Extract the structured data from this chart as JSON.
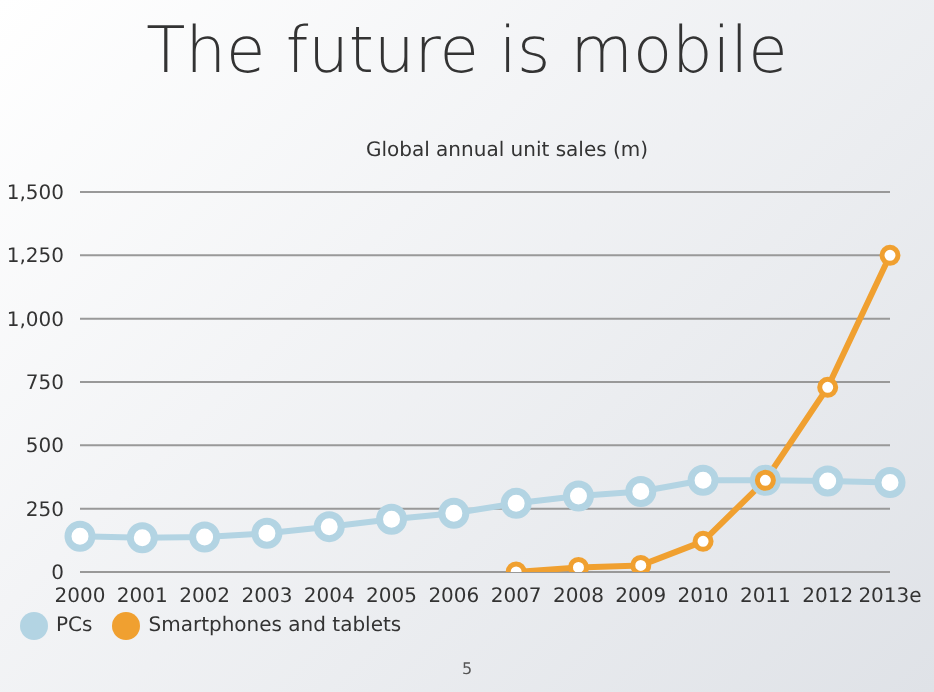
{
  "chart_data": {
    "type": "line",
    "title": "The future is mobile",
    "subtitle": "Global annual unit sales (m)",
    "categories": [
      "2000",
      "2001",
      "2002",
      "2003",
      "2004",
      "2005",
      "2006",
      "2007",
      "2008",
      "2009",
      "2010",
      "2011",
      "2012",
      "2013e"
    ],
    "series": [
      {
        "name": "PCs",
        "color": "#b3d4e3",
        "values": [
          141,
          135,
          138,
          153,
          179,
          208,
          232,
          271,
          300,
          318,
          362,
          362,
          359,
          353
        ]
      },
      {
        "name": "Smartphones and tablets",
        "color": "#f0a030",
        "values": [
          null,
          null,
          null,
          null,
          null,
          null,
          null,
          0,
          18,
          26,
          121,
          362,
          729,
          1250
        ]
      }
    ],
    "ylim": [
      0,
      1500
    ],
    "yticks": [
      0,
      {
        "value": 250,
        "label": "250"
      },
      {
        "value": 500,
        "label": "500"
      },
      {
        "value": 750,
        "label": "750"
      },
      {
        "value": 1000,
        "label": "1,000"
      },
      {
        "value": 1250,
        "label": "1,250"
      },
      {
        "value": 1500,
        "label": "1,500"
      }
    ],
    "grid": "y",
    "legend": "bottom left",
    "marker": "circle",
    "line_style": "solid",
    "annotations": [
      "5"
    ]
  }
}
